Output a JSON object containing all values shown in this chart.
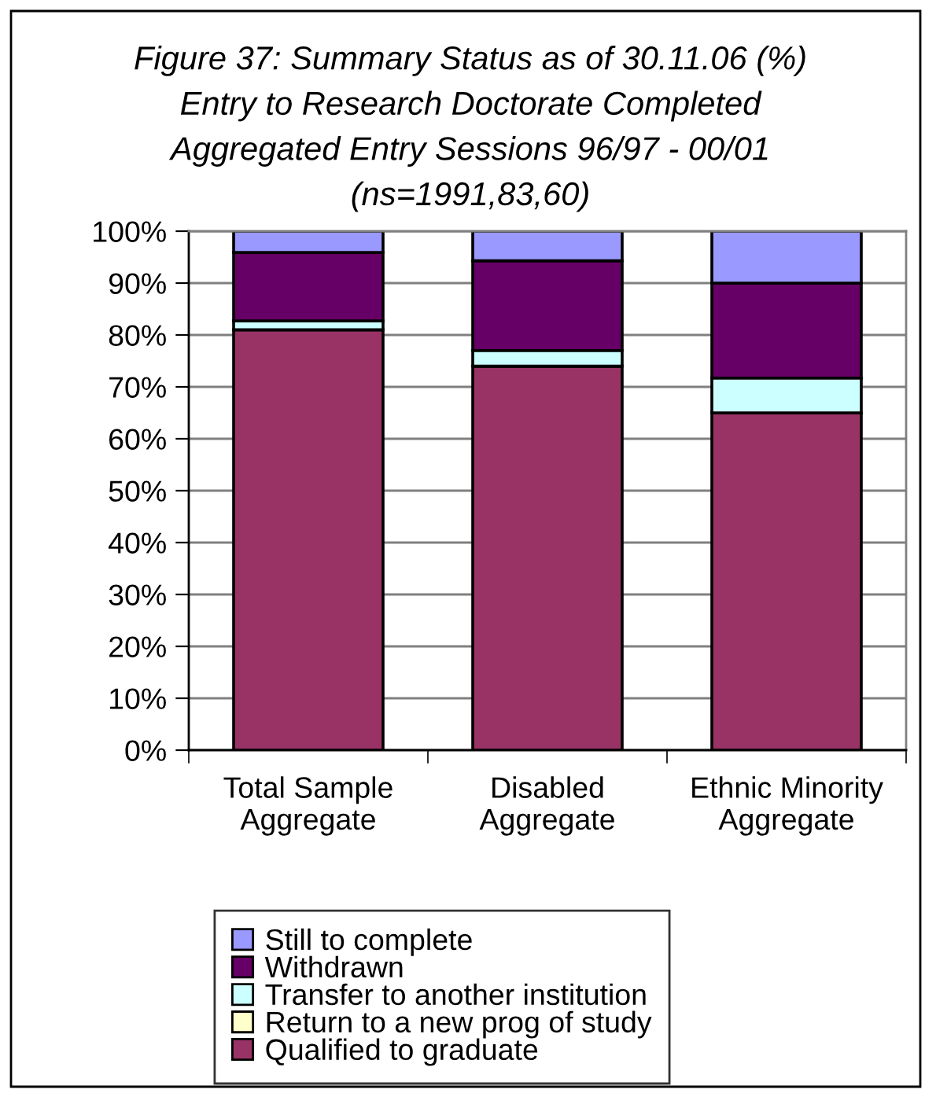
{
  "chart_data": {
    "type": "bar",
    "stacked": true,
    "title": "Figure 37: Summary Status as of 30.11.06 (%)\nEntry to Research Doctorate Completed\nAggregated Entry Sessions 96/97 - 00/01\n(ns=1991,83,60)",
    "categories": [
      "Total Sample\nAggregate",
      "Disabled\nAggregate",
      "Ethnic Minority\nAggregate"
    ],
    "series": [
      {
        "name": "Qualified to graduate",
        "color": "#993366",
        "values": [
          81,
          74,
          65
        ]
      },
      {
        "name": "Return to a new prog of study",
        "color": "#ffffcc",
        "values": [
          0,
          0,
          0
        ]
      },
      {
        "name": "Transfer to another institution",
        "color": "#ccffff",
        "values": [
          1.7,
          3,
          6.7
        ]
      },
      {
        "name": "Withdrawn",
        "color": "#660066",
        "values": [
          13.2,
          17.3,
          18.3
        ]
      },
      {
        "name": "Still to complete",
        "color": "#9999ff",
        "values": [
          4.1,
          5.7,
          10
        ]
      }
    ],
    "ylim": [
      0,
      100
    ],
    "yticks": [
      {
        "value": 0,
        "label": "0%"
      },
      {
        "value": 10,
        "label": "10%"
      },
      {
        "value": 20,
        "label": "20%"
      },
      {
        "value": 30,
        "label": "30%"
      },
      {
        "value": 40,
        "label": "40%"
      },
      {
        "value": 50,
        "label": "50%"
      },
      {
        "value": 60,
        "label": "60%"
      },
      {
        "value": 70,
        "label": "70%"
      },
      {
        "value": 80,
        "label": "80%"
      },
      {
        "value": 90,
        "label": "90%"
      },
      {
        "value": 100,
        "label": "100%"
      }
    ],
    "grid": "y",
    "legend": "bottom"
  }
}
